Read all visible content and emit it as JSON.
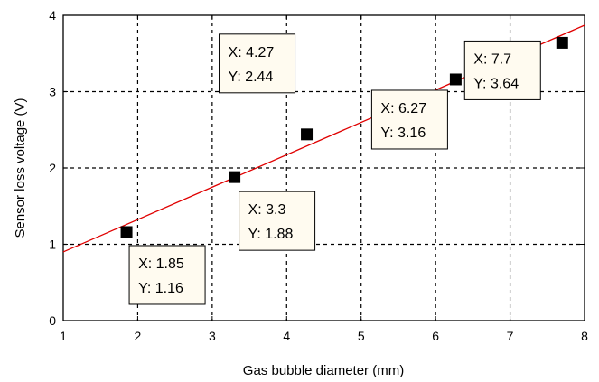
{
  "chart_data": {
    "type": "scatter",
    "title": "",
    "xlabel": "Gas bubble diameter (mm)",
    "ylabel": "Sensor loss voltage (V)",
    "xlim": [
      1,
      8
    ],
    "ylim": [
      0,
      4
    ],
    "xticks": [
      "1",
      "2",
      "3",
      "4",
      "5",
      "6",
      "7",
      "8"
    ],
    "yticks": [
      "0",
      "1",
      "2",
      "3",
      "4"
    ],
    "grid": true,
    "grid_style": "dashed",
    "series": [
      {
        "marker": "square",
        "color": "#000000",
        "points": [
          {
            "x": 1.85,
            "y": 1.16
          },
          {
            "x": 3.3,
            "y": 1.88
          },
          {
            "x": 4.27,
            "y": 2.44
          },
          {
            "x": 6.27,
            "y": 3.16
          },
          {
            "x": 7.7,
            "y": 3.64
          }
        ]
      }
    ],
    "fit_line": {
      "color": "#e00000",
      "points": [
        {
          "x": 1.0,
          "y": 0.9
        },
        {
          "x": 8.0,
          "y": 3.87
        }
      ]
    },
    "datatips": [
      {
        "lines": [
          "X: 1.85",
          "Y: 1.16"
        ]
      },
      {
        "lines": [
          "X: 3.3",
          "Y: 1.88"
        ]
      },
      {
        "lines": [
          "X: 4.27",
          "Y: 2.44"
        ]
      },
      {
        "lines": [
          "X: 6.27",
          "Y: 3.16"
        ]
      },
      {
        "lines": [
          "X: 7.7",
          "Y: 3.64"
        ]
      }
    ],
    "colors": {
      "axis_label": "#000000",
      "grid": "#000000",
      "tip_background": "#fffbf0",
      "tip_border": "#000000"
    }
  }
}
